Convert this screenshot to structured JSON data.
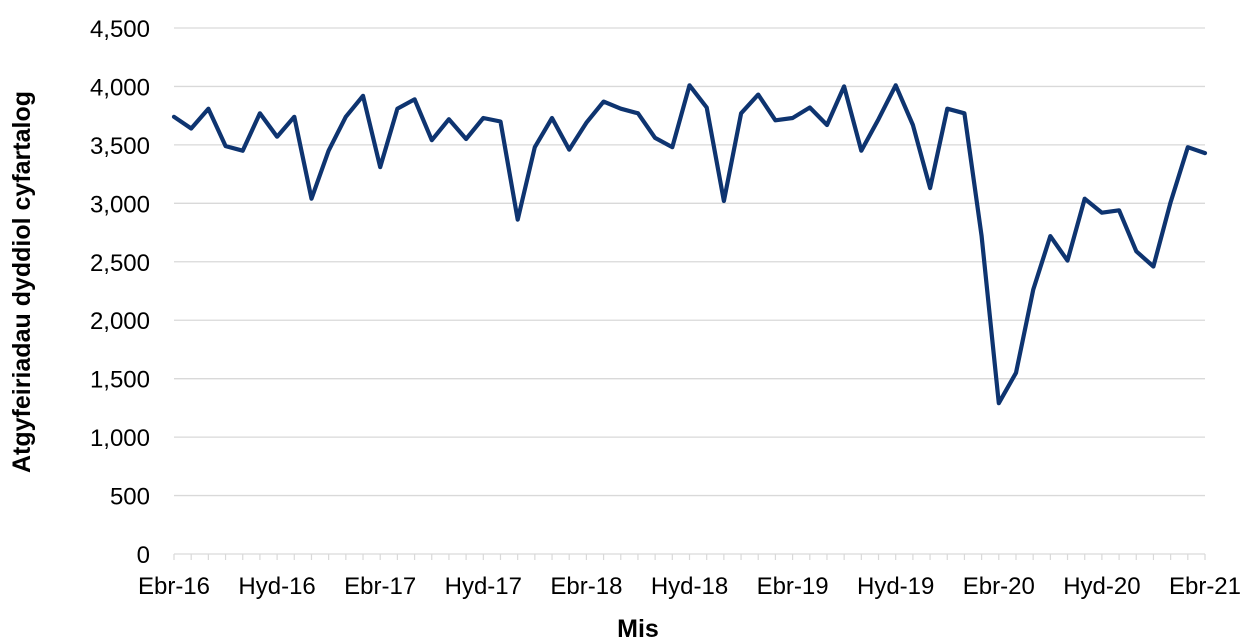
{
  "chart_data": {
    "type": "line",
    "title": "",
    "xlabel": "Mis",
    "ylabel": "Atgyfeiriadau dyddiol cyfartalog",
    "ylim": [
      0,
      4500
    ],
    "yticks": [
      0,
      500,
      1000,
      1500,
      2000,
      2500,
      3000,
      3500,
      4000,
      4500
    ],
    "ytick_labels": [
      "0",
      "500",
      "1,000",
      "1,500",
      "2,000",
      "2,500",
      "3,000",
      "3,500",
      "4,000",
      "4,500"
    ],
    "xtick_labels": [
      {
        "index": 0,
        "label": "Ebr-16"
      },
      {
        "index": 6,
        "label": "Hyd-16"
      },
      {
        "index": 12,
        "label": "Ebr-17"
      },
      {
        "index": 18,
        "label": "Hyd-17"
      },
      {
        "index": 24,
        "label": "Ebr-18"
      },
      {
        "index": 30,
        "label": "Hyd-18"
      },
      {
        "index": 36,
        "label": "Ebr-19"
      },
      {
        "index": 42,
        "label": "Hyd-19"
      },
      {
        "index": 48,
        "label": "Ebr-20"
      },
      {
        "index": 54,
        "label": "Hyd-20"
      },
      {
        "index": 60,
        "label": "Ebr-21"
      }
    ],
    "grid": true,
    "line_color": "#0e3470",
    "series": [
      {
        "values": [
          3740,
          3640,
          3810,
          3490,
          3450,
          3770,
          3570,
          3740,
          3040,
          3450,
          3740,
          3920,
          3310,
          3810,
          3890,
          3540,
          3720,
          3550,
          3730,
          3700,
          2860,
          3480,
          3730,
          3460,
          3690,
          3870,
          3810,
          3770,
          3560,
          3480,
          4010,
          3820,
          3020,
          3770,
          3930,
          3710,
          3730,
          3820,
          3670,
          4000,
          3450,
          3720,
          4010,
          3670,
          3130,
          3810,
          3770,
          2720,
          1290,
          1550,
          2260,
          2720,
          2510,
          3040,
          2920,
          2940,
          2590,
          2460,
          3010,
          3480,
          3430
        ]
      }
    ]
  }
}
